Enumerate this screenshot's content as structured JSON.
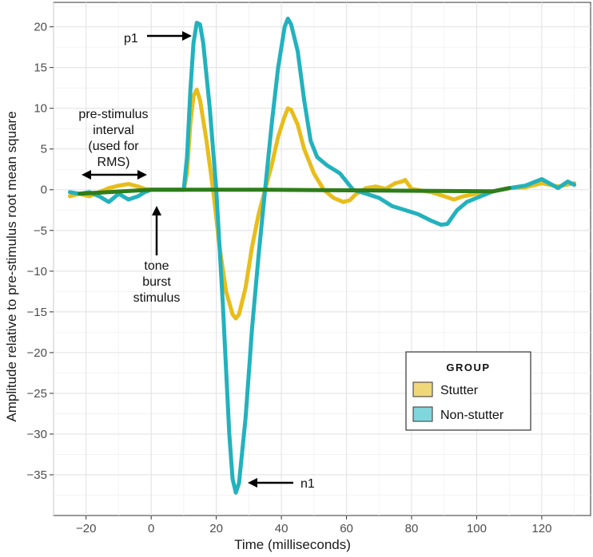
{
  "chart_data": {
    "type": "line",
    "xlabel": "Time (milliseconds)",
    "ylabel": "Amplitude relative to pre-stimulus root mean square",
    "xlim": [
      -30,
      135
    ],
    "ylim": [
      -40,
      23
    ],
    "xticks": [
      -20,
      0,
      20,
      40,
      60,
      80,
      100,
      120
    ],
    "yticks": [
      20,
      15,
      10,
      5,
      0,
      -5,
      -10,
      -15,
      -20,
      -25,
      -30,
      -35
    ],
    "tick_labels": {
      "x": [
        "−20",
        "0",
        "20",
        "40",
        "60",
        "80",
        "100",
        "120"
      ],
      "y": [
        "20",
        "15",
        "10",
        "5",
        "0",
        "−5",
        "−10",
        "−15",
        "−20",
        "−25",
        "−30",
        "−35"
      ]
    },
    "grid": true,
    "legend": {
      "title": "GROUP",
      "placement": "bottom-right",
      "entries": [
        "Stutter",
        "Non-stutter"
      ]
    },
    "overlap_color": "#2e7d1a",
    "series": [
      {
        "name": "Stutter",
        "color": "#e8bd1b",
        "points": [
          [
            -25,
            -0.8
          ],
          [
            -22,
            -0.5
          ],
          [
            -19,
            -0.8
          ],
          [
            -16,
            -0.3
          ],
          [
            -13,
            0.2
          ],
          [
            -10,
            0.5
          ],
          [
            -7,
            0.7
          ],
          [
            -4,
            0.4
          ],
          [
            -2,
            0.1
          ],
          [
            0,
            0
          ],
          [
            5,
            0
          ],
          [
            10,
            0
          ],
          [
            11,
            2
          ],
          [
            12,
            8
          ],
          [
            13,
            11.5
          ],
          [
            14,
            12.3
          ],
          [
            15,
            11
          ],
          [
            17,
            6
          ],
          [
            19,
            0
          ],
          [
            21,
            -7
          ],
          [
            23,
            -12.5
          ],
          [
            25,
            -15.3
          ],
          [
            26,
            -15.8
          ],
          [
            27,
            -15.3
          ],
          [
            29,
            -12
          ],
          [
            31,
            -7
          ],
          [
            33,
            -3
          ],
          [
            35,
            0
          ],
          [
            37,
            3
          ],
          [
            39,
            6.5
          ],
          [
            41,
            9
          ],
          [
            42,
            10
          ],
          [
            43,
            9.8
          ],
          [
            45,
            8
          ],
          [
            47,
            5
          ],
          [
            50,
            2
          ],
          [
            53,
            0
          ],
          [
            56,
            -1
          ],
          [
            59,
            -1.5
          ],
          [
            61,
            -1.3
          ],
          [
            63,
            -0.5
          ],
          [
            66,
            0.2
          ],
          [
            69,
            0.4
          ],
          [
            72,
            0.1
          ],
          [
            75,
            0.8
          ],
          [
            77,
            1
          ],
          [
            78,
            1.2
          ],
          [
            80,
            0.1
          ],
          [
            83,
            -0.1
          ],
          [
            86,
            -0.3
          ],
          [
            90,
            -0.8
          ],
          [
            93,
            -1.2
          ],
          [
            96,
            -0.8
          ],
          [
            100,
            -0.5
          ],
          [
            105,
            -0.2
          ],
          [
            110,
            0.2
          ],
          [
            115,
            0.3
          ],
          [
            120,
            0.8
          ],
          [
            125,
            0.4
          ],
          [
            130,
            0.8
          ]
        ]
      },
      {
        "name": "Non-stutter",
        "color": "#22b2bd",
        "points": [
          [
            -25,
            -0.3
          ],
          [
            -22,
            -0.5
          ],
          [
            -19,
            -0.3
          ],
          [
            -16,
            -0.8
          ],
          [
            -13,
            -1.5
          ],
          [
            -10,
            -0.5
          ],
          [
            -7,
            -1.2
          ],
          [
            -4,
            -0.8
          ],
          [
            -2,
            -0.3
          ],
          [
            0,
            0
          ],
          [
            5,
            0
          ],
          [
            10,
            0
          ],
          [
            11,
            4
          ],
          [
            12,
            12
          ],
          [
            13,
            18
          ],
          [
            14,
            20.5
          ],
          [
            15,
            20.3
          ],
          [
            16,
            18
          ],
          [
            18,
            10
          ],
          [
            20,
            0
          ],
          [
            22,
            -14
          ],
          [
            24,
            -30
          ],
          [
            25,
            -35.5
          ],
          [
            26,
            -37.2
          ],
          [
            27,
            -36
          ],
          [
            29,
            -28
          ],
          [
            31,
            -17
          ],
          [
            33,
            -8
          ],
          [
            35,
            0
          ],
          [
            37,
            8
          ],
          [
            39,
            15
          ],
          [
            41,
            20
          ],
          [
            42,
            21
          ],
          [
            43,
            20.3
          ],
          [
            45,
            17
          ],
          [
            47,
            11
          ],
          [
            49,
            6
          ],
          [
            51,
            4
          ],
          [
            54,
            3
          ],
          [
            58,
            2
          ],
          [
            62,
            0
          ],
          [
            66,
            -0.5
          ],
          [
            70,
            -1
          ],
          [
            74,
            -2
          ],
          [
            78,
            -2.5
          ],
          [
            82,
            -3
          ],
          [
            86,
            -3.8
          ],
          [
            89,
            -4.3
          ],
          [
            91,
            -4.2
          ],
          [
            94,
            -2.5
          ],
          [
            97,
            -1.5
          ],
          [
            100,
            -1
          ],
          [
            105,
            -0.2
          ],
          [
            110,
            0.2
          ],
          [
            115,
            0.5
          ],
          [
            120,
            1.3
          ],
          [
            125,
            0.2
          ],
          [
            128,
            1
          ],
          [
            130,
            0.6
          ]
        ]
      }
    ],
    "annotations": {
      "p1": "p1",
      "n1": "n1",
      "pre_stimulus": [
        "pre-stimulus",
        "interval",
        "(used for",
        "RMS)"
      ],
      "tone_burst": [
        "tone",
        "burst",
        "stimulus"
      ]
    }
  }
}
